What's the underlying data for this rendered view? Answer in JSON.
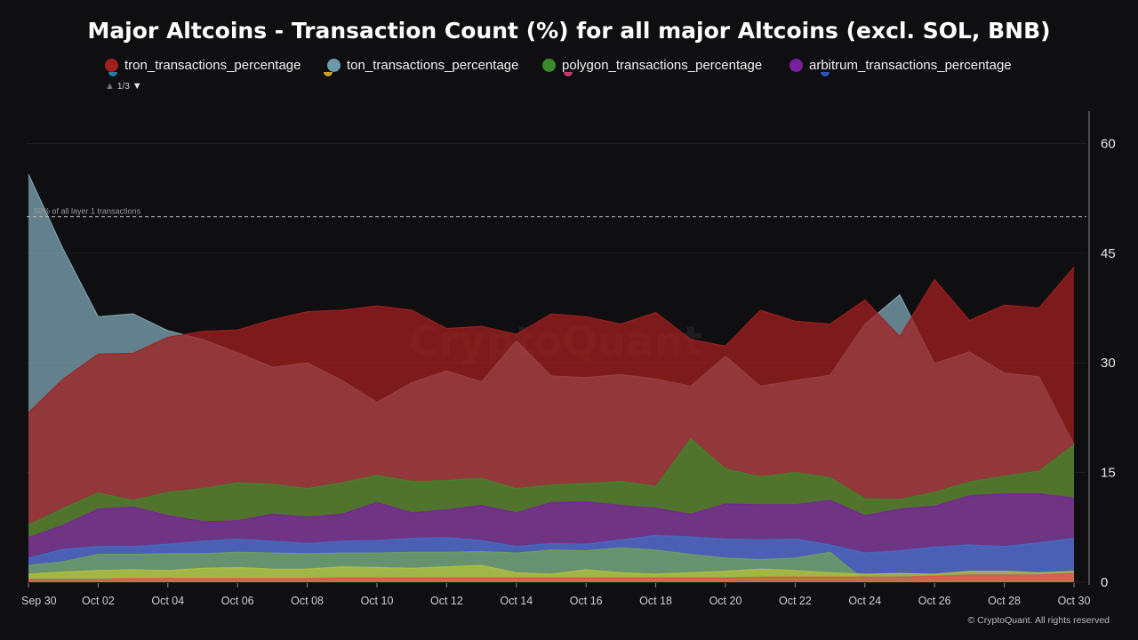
{
  "title": "Major Altcoins - Transaction Count (%) for all major Altcoins (excl. SOL, BNB)",
  "legend": {
    "items": [
      {
        "label": "tron_transactions_percentage",
        "color": "#a31f1f"
      },
      {
        "label": "ton_transactions_percentage",
        "color": "#6b9aa8"
      },
      {
        "label": "polygon_transactions_percentage",
        "color": "#3b8a2a"
      },
      {
        "label": "arbitrum_transactions_percentage",
        "color": "#7a1fa0"
      }
    ],
    "peek_colors": [
      "#2a7fa0",
      "#c9a227",
      "#c23a6a",
      "#2a55c2"
    ],
    "pager": {
      "text": "1/3",
      "up": "▲",
      "down": "▼"
    }
  },
  "credit": "© CryptoQuant. All rights reserved",
  "watermark": "CryptoQuant",
  "chart_data": {
    "type": "area",
    "y_axis_position": "right",
    "ylim": [
      0,
      62
    ],
    "yticks": [
      "0",
      "15",
      "30",
      "45",
      "60"
    ],
    "ytick_values": [
      0,
      15,
      30,
      45,
      60
    ],
    "grid": true,
    "x": [
      "Sep 30",
      "Oct 01",
      "Oct 02",
      "Oct 03",
      "Oct 04",
      "Oct 05",
      "Oct 06",
      "Oct 07",
      "Oct 08",
      "Oct 09",
      "Oct 10",
      "Oct 11",
      "Oct 12",
      "Oct 13",
      "Oct 14",
      "Oct 15",
      "Oct 16",
      "Oct 17",
      "Oct 18",
      "Oct 19",
      "Oct 20",
      "Oct 21",
      "Oct 22",
      "Oct 23",
      "Oct 24",
      "Oct 25",
      "Oct 26",
      "Oct 27",
      "Oct 28",
      "Oct 29",
      "Oct 30"
    ],
    "xtick_labels": [
      "Sep 30",
      "Oct 02",
      "Oct 04",
      "Oct 06",
      "Oct 08",
      "Oct 10",
      "Oct 12",
      "Oct 14",
      "Oct 16",
      "Oct 18",
      "Oct 20",
      "Oct 22",
      "Oct 24",
      "Oct 26",
      "Oct 28",
      "Oct 30"
    ],
    "xtick_indices": [
      0,
      2,
      4,
      6,
      8,
      10,
      12,
      14,
      16,
      18,
      20,
      22,
      24,
      26,
      28,
      30
    ],
    "reference_line": {
      "value": 50,
      "label": "50% of all layer 1 transactions"
    },
    "series": [
      {
        "name": "ton_transactions_percentage",
        "color": "#7fa8b5",
        "values": [
          55.8,
          45.5,
          36.3,
          36.7,
          34.4,
          33.2,
          31.4,
          29.4,
          30.0,
          27.6,
          24.6,
          27.3,
          28.9,
          27.4,
          33.0,
          28.2,
          28.0,
          28.4,
          27.8,
          26.8,
          30.9,
          26.8,
          27.6,
          28.3,
          35.3,
          39.3,
          29.9,
          31.5,
          28.6,
          28.1,
          18.8
        ]
      },
      {
        "name": "tron_transactions_percentage",
        "color": "#a31f1f",
        "values": [
          23.2,
          27.8,
          31.2,
          31.3,
          33.5,
          34.3,
          34.5,
          35.9,
          37.0,
          37.2,
          37.8,
          37.2,
          34.7,
          35.0,
          33.9,
          36.7,
          36.3,
          35.3,
          36.9,
          33.2,
          32.3,
          37.2,
          35.7,
          35.3,
          38.6,
          33.6,
          41.4,
          35.8,
          37.9,
          37.5,
          43.1
        ]
      },
      {
        "name": "polygon_transactions_percentage",
        "color": "#3b8a2a",
        "values": [
          7.8,
          10.1,
          12.2,
          11.2,
          12.3,
          12.8,
          13.6,
          13.4,
          12.8,
          13.6,
          14.6,
          13.8,
          13.9,
          14.2,
          12.8,
          13.3,
          13.5,
          13.8,
          13.1,
          19.6,
          15.5,
          14.4,
          15.0,
          14.3,
          11.4,
          11.3,
          12.3,
          13.7,
          14.5,
          15.2,
          18.8
        ]
      },
      {
        "name": "arbitrum_transactions_percentage",
        "color": "#7a1fa0",
        "values": [
          6.1,
          7.8,
          10.0,
          10.3,
          9.1,
          8.3,
          8.4,
          9.3,
          8.9,
          9.3,
          10.9,
          9.5,
          9.9,
          10.5,
          9.5,
          10.9,
          11.0,
          10.5,
          10.1,
          9.3,
          10.7,
          10.6,
          10.6,
          11.2,
          9.1,
          10.0,
          10.4,
          11.8,
          12.1,
          12.1,
          11.5
        ]
      },
      {
        "name": "",
        "color": "#3f6fc4",
        "values": [
          3.3,
          4.5,
          4.9,
          4.9,
          5.2,
          5.6,
          5.9,
          5.6,
          5.3,
          5.6,
          5.7,
          6.0,
          6.1,
          5.7,
          4.9,
          5.3,
          5.2,
          5.8,
          6.4,
          6.2,
          5.9,
          5.8,
          5.9,
          5.1,
          4.0,
          4.3,
          4.8,
          5.1,
          4.9,
          5.4,
          6.0
        ]
      },
      {
        "name": "",
        "color": "#6fa35a",
        "values": [
          2.3,
          2.8,
          3.8,
          3.8,
          3.9,
          3.9,
          4.1,
          4.0,
          3.9,
          4.0,
          4.0,
          4.1,
          4.1,
          4.2,
          4.0,
          4.4,
          4.3,
          4.7,
          4.4,
          3.8,
          3.3,
          3.1,
          3.3,
          4.1,
          0.2,
          0.2,
          0.2,
          0.2,
          0.2,
          0.2,
          0.2
        ]
      },
      {
        "name": "",
        "color": "#b5c23a",
        "values": [
          1.1,
          1.4,
          1.6,
          1.7,
          1.6,
          1.9,
          2.0,
          1.8,
          1.8,
          2.1,
          2.0,
          1.9,
          2.1,
          2.3,
          1.3,
          1.1,
          1.7,
          1.3,
          1.1,
          1.3,
          1.5,
          1.8,
          1.6,
          1.3,
          1.1,
          1.2,
          1.1,
          1.5,
          1.5,
          1.3,
          1.5
        ]
      },
      {
        "name": "",
        "color": "#d9534f",
        "values": [
          0.4,
          0.4,
          0.4,
          0.5,
          0.5,
          0.5,
          0.5,
          0.5,
          0.5,
          0.6,
          0.6,
          0.6,
          0.6,
          0.6,
          0.6,
          0.6,
          0.6,
          0.6,
          0.6,
          0.6,
          0.6,
          0.7,
          0.7,
          0.7,
          0.7,
          0.7,
          0.8,
          1.0,
          1.0,
          1.0,
          1.2
        ]
      }
    ]
  }
}
